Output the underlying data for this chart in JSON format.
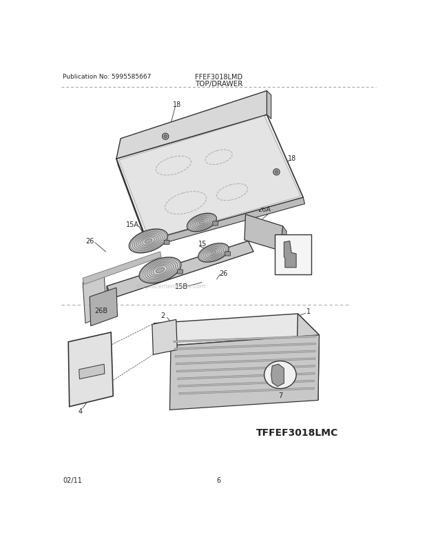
{
  "title": "TOP/DRAWER",
  "model": "FFEF3018LMD",
  "publication": "Publication No: 5995585667",
  "date": "02/11",
  "page": "6",
  "footer_model": "TFFEF3018LMC",
  "bg_color": "#ffffff",
  "line_color": "#333333",
  "label_color": "#222222",
  "part_fill": "#e0e0e0",
  "part_fill_dark": "#c0c0c0",
  "part_fill_mid": "#d0d0d0"
}
